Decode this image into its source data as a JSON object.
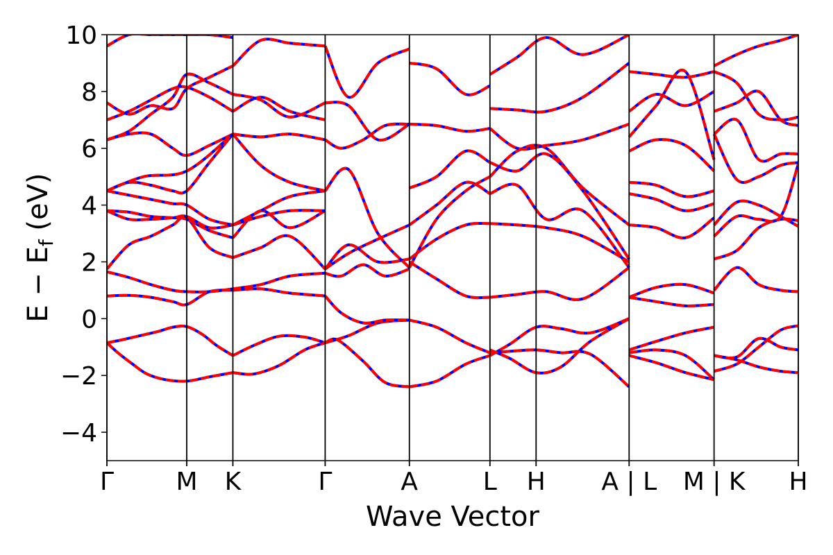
{
  "chart_data": {
    "type": "line",
    "title": "",
    "xlabel": "Wave Vector",
    "ylabel": "E − E",
    "ylabel_subscript": "f",
    "ylabel_unit": " (eV)",
    "ylim": [
      -5,
      10
    ],
    "yticks": [
      -4,
      -2,
      0,
      2,
      4,
      6,
      8,
      10
    ],
    "xlim": [
      0,
      9.44
    ],
    "grid": false,
    "legend": "none",
    "high_symmetry_points": [
      {
        "label": "Γ",
        "x": 0.0
      },
      {
        "label": "M",
        "x": 1.09
      },
      {
        "label": "K",
        "x": 1.72
      },
      {
        "label": "Γ",
        "x": 2.98
      },
      {
        "label": "A",
        "x": 4.13
      },
      {
        "label": "L",
        "x": 5.23
      },
      {
        "label": "H",
        "x": 5.86
      },
      {
        "label": "A | L",
        "x": 7.13
      },
      {
        "label": "M | K",
        "x": 8.29
      },
      {
        "label": "H",
        "x": 9.44
      }
    ],
    "colors": {
      "band_solid": "#0000ff",
      "band_dashed": "#ff0000",
      "axes": "#000000"
    },
    "series": [
      {
        "x": [
          0.0,
          0.15,
          0.35,
          0.55,
          0.8,
          1.09,
          1.4,
          1.72
        ],
        "values": [
          -0.85,
          -1.2,
          -1.6,
          -1.95,
          -2.15,
          -2.2,
          -2.05,
          -1.9
        ]
      },
      {
        "x": [
          1.72,
          2.0,
          2.35,
          2.7,
          2.98
        ],
        "values": [
          -1.9,
          -1.95,
          -1.65,
          -1.1,
          -0.85
        ]
      },
      {
        "x": [
          0.0,
          0.2,
          0.45,
          0.7,
          0.9,
          1.09,
          1.3,
          1.5,
          1.72
        ],
        "values": [
          -0.85,
          -0.75,
          -0.6,
          -0.45,
          -0.3,
          -0.28,
          -0.55,
          -0.95,
          -1.3
        ]
      },
      {
        "x": [
          1.72,
          2.0,
          2.35,
          2.7,
          2.98
        ],
        "values": [
          -1.3,
          -0.95,
          -0.62,
          -0.65,
          -0.85
        ]
      },
      {
        "x": [
          2.98,
          3.3,
          3.7,
          4.13
        ],
        "values": [
          -0.85,
          -0.6,
          -0.15,
          -0.05
        ]
      },
      {
        "x": [
          2.98,
          3.15,
          3.5,
          3.8,
          4.13
        ],
        "values": [
          -0.85,
          -0.75,
          -1.5,
          -2.25,
          -2.4
        ]
      },
      {
        "x": [
          4.13,
          4.5,
          4.9,
          5.23
        ],
        "values": [
          -0.05,
          -0.3,
          -0.85,
          -1.2
        ]
      },
      {
        "x": [
          4.13,
          4.5,
          4.9,
          5.23
        ],
        "values": [
          -2.4,
          -2.2,
          -1.6,
          -1.3
        ]
      },
      {
        "x": [
          5.23,
          5.5,
          5.86,
          6.2,
          6.6,
          7.13
        ],
        "values": [
          -1.2,
          -1.15,
          -1.1,
          -1.2,
          -1.25,
          -2.4
        ]
      },
      {
        "x": [
          5.23,
          5.5,
          5.86,
          6.2,
          6.6,
          7.13
        ],
        "values": [
          -1.3,
          -0.9,
          -0.3,
          -0.35,
          -0.5,
          0.0
        ]
      },
      {
        "x": [
          5.23,
          5.5,
          5.86,
          6.2,
          6.6,
          7.13
        ],
        "values": [
          -1.1,
          -1.4,
          -1.9,
          -1.7,
          -0.8,
          -0.0
        ]
      },
      {
        "x": [
          7.13,
          7.5,
          7.9,
          8.29
        ],
        "values": [
          -1.1,
          -0.8,
          -0.5,
          -0.3
        ]
      },
      {
        "x": [
          7.13,
          7.5,
          7.9,
          8.29
        ],
        "values": [
          -1.2,
          -1.1,
          -1.3,
          -2.15
        ]
      },
      {
        "x": [
          7.13,
          7.5,
          7.9,
          8.29
        ],
        "values": [
          -1.3,
          -1.55,
          -1.9,
          -2.15
        ]
      },
      {
        "x": [
          8.29,
          8.6,
          8.9,
          9.2,
          9.44
        ],
        "values": [
          -1.85,
          -1.6,
          -1.0,
          -0.4,
          -0.25
        ]
      },
      {
        "x": [
          8.29,
          8.6,
          8.9,
          9.2,
          9.44
        ],
        "values": [
          -1.3,
          -1.45,
          -1.7,
          -1.85,
          -1.9
        ]
      },
      {
        "x": [
          8.29,
          8.6,
          8.9,
          9.2,
          9.44
        ],
        "values": [
          -1.3,
          -1.35,
          -0.7,
          -1.0,
          -1.1
        ]
      },
      {
        "x": [
          0.0,
          0.3,
          0.6,
          0.9,
          1.09,
          1.4,
          1.72
        ],
        "values": [
          0.8,
          0.82,
          0.75,
          0.6,
          0.5,
          0.95,
          1.0
        ]
      },
      {
        "x": [
          1.72,
          2.1,
          2.5,
          2.98
        ],
        "values": [
          1.0,
          1.05,
          0.9,
          0.8
        ]
      },
      {
        "x": [
          0.0,
          0.3,
          0.6,
          0.9,
          1.09,
          1.4,
          1.72
        ],
        "values": [
          1.65,
          1.45,
          1.2,
          1.0,
          0.95,
          0.95,
          1.05
        ]
      },
      {
        "x": [
          1.72,
          2.1,
          2.5,
          2.98
        ],
        "values": [
          1.05,
          1.2,
          1.5,
          1.6
        ]
      },
      {
        "x": [
          2.98,
          3.2,
          3.5,
          3.8,
          4.13
        ],
        "values": [
          0.8,
          0.2,
          -0.15,
          -0.05,
          -0.05
        ]
      },
      {
        "x": [
          4.13,
          4.5,
          4.9,
          5.23
        ],
        "values": [
          2.0,
          1.4,
          0.8,
          0.75
        ]
      },
      {
        "x": [
          5.23,
          5.6,
          6.0,
          6.5,
          7.13
        ],
        "values": [
          0.75,
          0.85,
          0.95,
          0.7,
          1.8
        ]
      },
      {
        "x": [
          7.13,
          7.5,
          7.9,
          8.29
        ],
        "values": [
          0.75,
          1.1,
          1.2,
          0.9
        ]
      },
      {
        "x": [
          7.13,
          7.5,
          7.9,
          8.29
        ],
        "values": [
          0.75,
          0.6,
          0.45,
          0.5
        ]
      },
      {
        "x": [
          8.29,
          8.6,
          8.9,
          9.2,
          9.44
        ],
        "values": [
          1.0,
          1.8,
          1.2,
          1.0,
          0.95
        ]
      },
      {
        "x": [
          0.0,
          0.3,
          0.6,
          0.9,
          1.09,
          1.4,
          1.72
        ],
        "values": [
          1.75,
          2.6,
          2.9,
          3.3,
          3.55,
          2.5,
          2.15
        ]
      },
      {
        "x": [
          1.72,
          2.1,
          2.5,
          2.98
        ],
        "values": [
          2.15,
          2.5,
          2.9,
          1.75
        ]
      },
      {
        "x": [
          0.0,
          0.3,
          0.6,
          0.9,
          1.09,
          1.4,
          1.72
        ],
        "values": [
          3.8,
          3.75,
          3.6,
          3.55,
          3.5,
          3.1,
          2.85
        ]
      },
      {
        "x": [
          1.72,
          2.1,
          2.5,
          2.98
        ],
        "values": [
          2.85,
          3.8,
          3.2,
          3.8
        ]
      },
      {
        "x": [
          0.0,
          0.3,
          0.6,
          0.9,
          1.09,
          1.4,
          1.72
        ],
        "values": [
          3.8,
          3.5,
          3.5,
          3.55,
          3.6,
          3.2,
          3.3
        ]
      },
      {
        "x": [
          1.72,
          2.1,
          2.5,
          2.98
        ],
        "values": [
          3.3,
          3.6,
          3.8,
          3.8
        ]
      },
      {
        "x": [
          0.0,
          0.3,
          0.6,
          0.9,
          1.09,
          1.4,
          1.72
        ],
        "values": [
          4.5,
          4.8,
          4.7,
          4.5,
          4.5,
          5.5,
          6.5
        ]
      },
      {
        "x": [
          0.0,
          0.3,
          0.6,
          0.9,
          1.09,
          1.4,
          1.72
        ],
        "values": [
          4.5,
          4.35,
          4.2,
          4.05,
          4.0,
          3.5,
          3.3
        ]
      },
      {
        "x": [
          1.72,
          2.1,
          2.5,
          2.98
        ],
        "values": [
          3.3,
          3.8,
          4.3,
          4.5
        ]
      },
      {
        "x": [
          1.72,
          2.1,
          2.5,
          2.98
        ],
        "values": [
          6.5,
          5.4,
          4.8,
          4.5
        ]
      },
      {
        "x": [
          2.98,
          3.3,
          3.7,
          4.13
        ],
        "values": [
          1.75,
          2.3,
          2.8,
          3.3
        ]
      },
      {
        "x": [
          2.98,
          3.3,
          3.7,
          4.13
        ],
        "values": [
          1.75,
          2.6,
          2.0,
          2.1
        ]
      },
      {
        "x": [
          2.98,
          3.3,
          3.7,
          4.13
        ],
        "values": [
          4.5,
          5.25,
          3.0,
          1.8
        ]
      },
      {
        "x": [
          2.98,
          3.2,
          3.5,
          3.8,
          4.13
        ],
        "values": [
          1.6,
          1.5,
          1.9,
          1.5,
          1.75
        ]
      },
      {
        "x": [
          4.13,
          4.5,
          4.9,
          5.23
        ],
        "values": [
          3.3,
          4.0,
          4.8,
          4.4
        ]
      },
      {
        "x": [
          4.13,
          4.5,
          4.9,
          5.23
        ],
        "values": [
          2.1,
          2.8,
          3.3,
          3.35
        ]
      },
      {
        "x": [
          4.13,
          4.5,
          4.9,
          5.23
        ],
        "values": [
          1.8,
          3.5,
          4.5,
          5.0
        ]
      },
      {
        "x": [
          4.13,
          4.5,
          4.9,
          5.23
        ],
        "values": [
          4.6,
          5.0,
          5.9,
          5.5
        ]
      },
      {
        "x": [
          5.23,
          5.6,
          6.0,
          6.5,
          7.13
        ],
        "values": [
          3.35,
          3.3,
          3.2,
          2.9,
          2.0
        ]
      },
      {
        "x": [
          5.23,
          5.6,
          6.0,
          6.5,
          7.13
        ],
        "values": [
          4.4,
          4.7,
          3.5,
          3.8,
          1.8
        ]
      },
      {
        "x": [
          5.23,
          5.6,
          6.0,
          6.5,
          7.13
        ],
        "values": [
          5.0,
          5.9,
          6.0,
          4.6,
          3.3
        ]
      },
      {
        "x": [
          5.23,
          5.6,
          6.0,
          6.5,
          7.13
        ],
        "values": [
          5.5,
          5.2,
          5.8,
          4.5,
          2.1
        ]
      },
      {
        "x": [
          7.13,
          7.5,
          7.9,
          8.29
        ],
        "values": [
          3.3,
          3.2,
          2.85,
          3.55
        ]
      },
      {
        "x": [
          7.13,
          7.5,
          7.9,
          8.29
        ],
        "values": [
          4.4,
          4.2,
          3.8,
          4.05
        ]
      },
      {
        "x": [
          7.13,
          7.5,
          7.9,
          8.29
        ],
        "values": [
          4.8,
          4.7,
          4.3,
          4.5
        ]
      },
      {
        "x": [
          8.29,
          8.6,
          8.9,
          9.2,
          9.44
        ],
        "values": [
          2.1,
          2.4,
          3.2,
          3.5,
          3.45
        ]
      },
      {
        "x": [
          8.29,
          8.6,
          8.9,
          9.2,
          9.44
        ],
        "values": [
          3.3,
          4.1,
          4.0,
          3.6,
          3.25
        ]
      },
      {
        "x": [
          8.29,
          8.6,
          8.9,
          9.2,
          9.44
        ],
        "values": [
          2.9,
          3.6,
          3.5,
          3.6,
          5.45
        ]
      },
      {
        "x": [
          8.29,
          8.6,
          8.9,
          9.2,
          9.44
        ],
        "values": [
          6.5,
          4.9,
          5.0,
          5.4,
          5.5
        ]
      },
      {
        "x": [
          0.0,
          0.3,
          0.6,
          0.9,
          1.09,
          1.4,
          1.72
        ],
        "values": [
          6.3,
          6.5,
          6.5,
          6.0,
          5.75,
          6.1,
          6.5
        ]
      },
      {
        "x": [
          1.72,
          2.1,
          2.5,
          2.98
        ],
        "values": [
          6.5,
          6.4,
          6.5,
          6.3
        ]
      },
      {
        "x": [
          0.0,
          0.3,
          0.6,
          0.9,
          1.09,
          1.4,
          1.72
        ],
        "values": [
          7.0,
          7.3,
          7.7,
          8.1,
          8.15,
          7.8,
          7.3
        ]
      },
      {
        "x": [
          1.72,
          2.1,
          2.5,
          2.98
        ],
        "values": [
          7.3,
          7.8,
          7.3,
          7.0
        ]
      },
      {
        "x": [
          0.0,
          0.3,
          0.6,
          0.9,
          1.09,
          1.4,
          1.72
        ],
        "values": [
          7.6,
          7.2,
          7.5,
          7.4,
          8.1,
          8.5,
          8.9
        ]
      },
      {
        "x": [
          0.0,
          0.3,
          0.6,
          0.9,
          1.09,
          1.4,
          1.72
        ],
        "values": [
          6.3,
          6.6,
          7.2,
          7.8,
          8.6,
          8.3,
          7.9
        ]
      },
      {
        "x": [
          1.72,
          2.1,
          2.5,
          2.98
        ],
        "values": [
          7.9,
          7.7,
          7.1,
          7.6
        ]
      },
      {
        "x": [
          1.72,
          2.1,
          2.5,
          2.98
        ],
        "values": [
          8.9,
          9.8,
          9.7,
          9.6
        ]
      },
      {
        "x": [
          0.0,
          0.3,
          0.6,
          0.9,
          1.09,
          1.4,
          1.72
        ],
        "values": [
          9.6,
          10.0,
          10.0,
          10.0,
          10.0,
          10.0,
          9.9
        ]
      },
      {
        "x": [
          0.0,
          0.5,
          1.09,
          1.72
        ],
        "values": [
          4.5,
          5.0,
          5.2,
          6.5
        ]
      },
      {
        "x": [
          2.98,
          3.2,
          3.5,
          3.8,
          4.13
        ],
        "values": [
          6.3,
          6.0,
          6.3,
          6.8,
          6.85
        ]
      },
      {
        "x": [
          2.98,
          3.3,
          3.7,
          4.13
        ],
        "values": [
          7.6,
          7.5,
          6.3,
          6.85
        ]
      },
      {
        "x": [
          2.98,
          3.3,
          3.7,
          4.13
        ],
        "values": [
          9.6,
          7.8,
          9.0,
          9.5
        ]
      },
      {
        "x": [
          4.13,
          4.5,
          4.9,
          5.23
        ],
        "values": [
          6.85,
          6.8,
          6.6,
          6.7
        ]
      },
      {
        "x": [
          4.13,
          4.5,
          4.9,
          5.23
        ],
        "values": [
          9.0,
          8.8,
          7.9,
          8.2
        ]
      },
      {
        "x": [
          5.23,
          5.6,
          6.0,
          6.5,
          7.13
        ],
        "values": [
          6.7,
          6.0,
          6.1,
          6.3,
          6.85
        ]
      },
      {
        "x": [
          5.23,
          5.6,
          6.0,
          6.5,
          7.13
        ],
        "values": [
          7.4,
          7.35,
          7.3,
          7.8,
          9.0
        ]
      },
      {
        "x": [
          5.23,
          5.6,
          6.0,
          6.5,
          7.13
        ],
        "values": [
          8.6,
          9.2,
          9.9,
          9.3,
          10.0
        ]
      },
      {
        "x": [
          7.13,
          7.5,
          7.9,
          8.29
        ],
        "values": [
          5.9,
          6.3,
          6.1,
          5.2
        ]
      },
      {
        "x": [
          7.13,
          7.5,
          7.9,
          8.29
        ],
        "values": [
          7.3,
          7.9,
          7.5,
          8.0
        ]
      },
      {
        "x": [
          7.13,
          7.5,
          7.9,
          8.29
        ],
        "values": [
          8.7,
          8.6,
          8.5,
          8.7
        ]
      },
      {
        "x": [
          7.13,
          7.5,
          7.9,
          8.29
        ],
        "values": [
          6.4,
          7.5,
          8.7,
          5.6
        ]
      },
      {
        "x": [
          8.29,
          8.6,
          8.9,
          9.2,
          9.44
        ],
        "values": [
          7.3,
          7.6,
          8.0,
          7.0,
          6.8
        ]
      },
      {
        "x": [
          8.29,
          8.6,
          8.9,
          9.2,
          9.44
        ],
        "values": [
          8.9,
          9.3,
          9.6,
          9.8,
          10.0
        ]
      },
      {
        "x": [
          8.29,
          8.6,
          8.9,
          9.2,
          9.44
        ],
        "values": [
          6.5,
          7.0,
          5.6,
          5.8,
          5.8
        ]
      },
      {
        "x": [
          8.29,
          8.6,
          8.9,
          9.2,
          9.44
        ],
        "values": [
          8.7,
          8.3,
          7.2,
          7.0,
          7.1
        ]
      }
    ]
  }
}
